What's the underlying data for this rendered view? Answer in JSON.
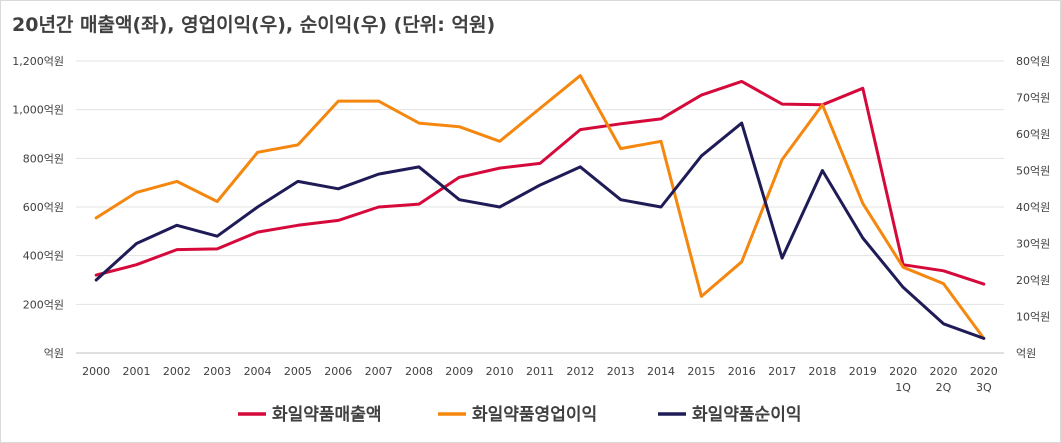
{
  "chart_data": {
    "type": "line",
    "title": "20년간 매출액(좌), 영업이익(우), 순이익(우) (단위: 억원)",
    "categories": [
      [
        "2000"
      ],
      [
        "2001"
      ],
      [
        "2002"
      ],
      [
        "2003"
      ],
      [
        "2004"
      ],
      [
        "2005"
      ],
      [
        "2006"
      ],
      [
        "2007"
      ],
      [
        "2008"
      ],
      [
        "2009"
      ],
      [
        "2010"
      ],
      [
        "2011"
      ],
      [
        "2012"
      ],
      [
        "2013"
      ],
      [
        "2014"
      ],
      [
        "2015"
      ],
      [
        "2016"
      ],
      [
        "2017"
      ],
      [
        "2018"
      ],
      [
        "2019"
      ],
      [
        "2020",
        "1Q"
      ],
      [
        "2020",
        "2Q"
      ],
      [
        "2020",
        "3Q"
      ]
    ],
    "y_left": {
      "ylim": [
        0,
        1200
      ],
      "ticks": [
        0,
        200,
        400,
        600,
        800,
        1000,
        1200
      ],
      "tick_labels": [
        "억원",
        "200억원",
        "400억원",
        "600억원",
        "800억원",
        "1,000억원",
        "1,200억원"
      ]
    },
    "y_right": {
      "ylim": [
        0,
        80
      ],
      "ticks": [
        0,
        10,
        20,
        30,
        40,
        50,
        60,
        70,
        80
      ],
      "tick_labels": [
        "억원",
        "10억원",
        "20억원",
        "30억원",
        "40억원",
        "50억원",
        "60억원",
        "70억원",
        "80억원"
      ]
    },
    "grid": true,
    "legend_position": "bottom",
    "series": [
      {
        "name": "화일약품매출액",
        "axis": "left",
        "color": "#d6093b",
        "values": [
          320,
          363,
          425,
          428,
          497,
          525,
          545,
          600,
          612,
          722,
          760,
          779,
          918,
          942,
          962,
          1060,
          1116,
          1023,
          1020,
          1088,
          363,
          338,
          283
        ]
      },
      {
        "name": "화일약품영업이익",
        "axis": "right",
        "color": "#f5870f",
        "values": [
          37,
          44,
          47,
          41.5,
          55,
          57,
          69,
          69,
          63,
          62,
          58,
          67,
          76,
          56,
          58,
          15.5,
          25,
          53,
          68,
          41,
          23.5,
          19,
          4
        ]
      },
      {
        "name": "화일약품순이익",
        "axis": "right",
        "color": "#1e1b57",
        "values": [
          20,
          30,
          35,
          32,
          40,
          47,
          45,
          49,
          51,
          42,
          40,
          46,
          51,
          42,
          40,
          54,
          63,
          26,
          50,
          31.5,
          18,
          8,
          4
        ]
      }
    ]
  }
}
